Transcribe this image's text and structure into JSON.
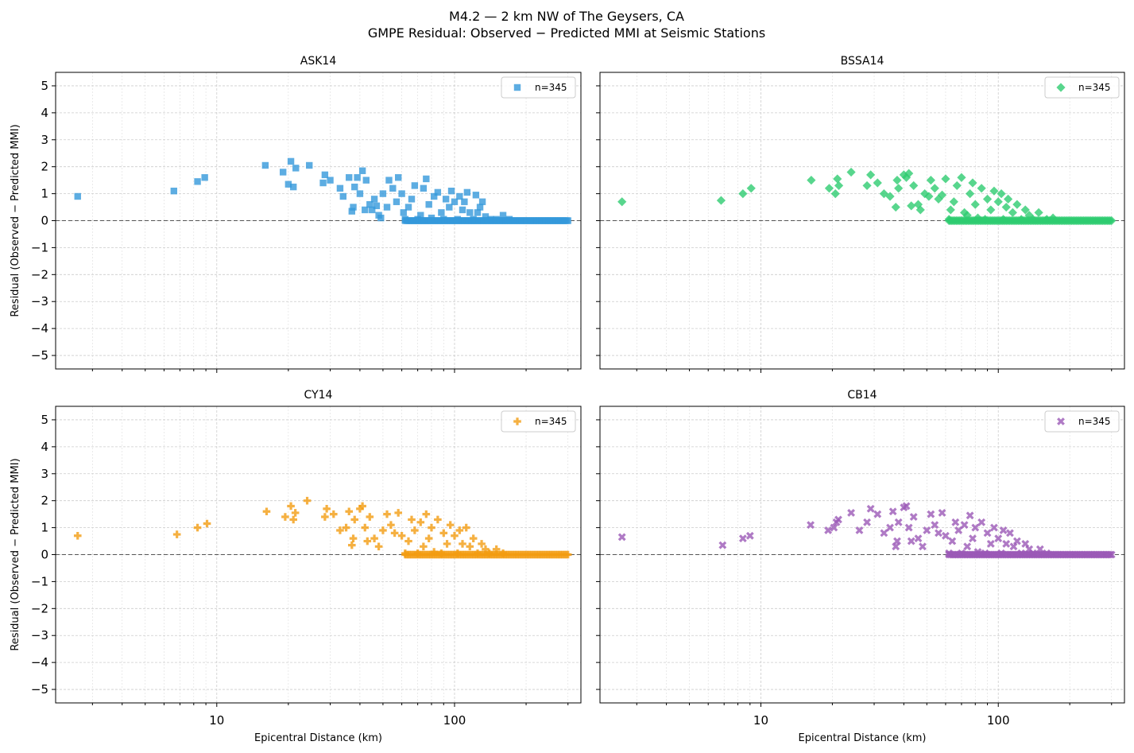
{
  "figure": {
    "title_line1": "M4.2 — 2 km NW of The Geysers, CA",
    "title_line2": "GMPE Residual: Observed − Predicted MMI at Seismic Stations"
  },
  "chart_data": [
    {
      "type": "scatter",
      "title": "ASK14",
      "xlabel": "",
      "ylabel": "Residual (Observed − Predicted MMI)",
      "xscale": "log",
      "xlim": [
        2.1,
        340
      ],
      "ylim": [
        -5.5,
        5.5
      ],
      "xticks": [
        "10",
        "100"
      ],
      "yticks": [
        "5",
        "4",
        "3",
        "2",
        "1",
        "0",
        "−1",
        "−2",
        "−3",
        "−4",
        "−5"
      ],
      "grid": true,
      "reference_line": 0,
      "legend": {
        "label": "n=345",
        "position": "upper right"
      },
      "marker": "square",
      "color": "#3498db",
      "n": 345,
      "points": [
        [
          2.6,
          0.9
        ],
        [
          6.6,
          1.1
        ],
        [
          8.3,
          1.45
        ],
        [
          8.9,
          1.6
        ],
        [
          16,
          2.05
        ],
        [
          19,
          1.8
        ],
        [
          20,
          1.35
        ],
        [
          20.5,
          2.2
        ],
        [
          21,
          1.25
        ],
        [
          21.5,
          1.95
        ],
        [
          24.5,
          2.05
        ],
        [
          28,
          1.4
        ],
        [
          28.5,
          1.7
        ],
        [
          30,
          1.5
        ],
        [
          33,
          1.2
        ],
        [
          34,
          0.9
        ],
        [
          36,
          1.6
        ],
        [
          37,
          0.35
        ],
        [
          37.5,
          0.5
        ],
        [
          38,
          1.25
        ],
        [
          39,
          1.6
        ],
        [
          40,
          1.0
        ],
        [
          41,
          1.85
        ],
        [
          42,
          0.4
        ],
        [
          42.5,
          1.5
        ],
        [
          44,
          0.6
        ],
        [
          45,
          0.4
        ],
        [
          46,
          0.8
        ],
        [
          47,
          0.55
        ],
        [
          48,
          0.2
        ],
        [
          49,
          0.1
        ],
        [
          50,
          1.0
        ],
        [
          52,
          0.5
        ],
        [
          53,
          1.5
        ],
        [
          55,
          1.2
        ],
        [
          57,
          0.7
        ],
        [
          58,
          1.6
        ],
        [
          60,
          1.0
        ],
        [
          61,
          0.3
        ],
        [
          62,
          0.05
        ],
        [
          64,
          0.5
        ],
        [
          66,
          0.8
        ],
        [
          68,
          1.3
        ],
        [
          70,
          0.05
        ],
        [
          72,
          0.2
        ],
        [
          74,
          1.2
        ],
        [
          76,
          1.55
        ],
        [
          78,
          0.6
        ],
        [
          80,
          0.1
        ],
        [
          82,
          0.9
        ],
        [
          85,
          1.05
        ],
        [
          88,
          0.3
        ],
        [
          90,
          0.05
        ],
        [
          92,
          0.8
        ],
        [
          95,
          0.5
        ],
        [
          97,
          1.1
        ],
        [
          100,
          0.7
        ],
        [
          103,
          0.05
        ],
        [
          105,
          0.9
        ],
        [
          108,
          0.4
        ],
        [
          110,
          0.7
        ],
        [
          113,
          1.05
        ],
        [
          116,
          0.3
        ],
        [
          120,
          0.05
        ],
        [
          123,
          0.95
        ],
        [
          125,
          0.3
        ],
        [
          128,
          0.5
        ],
        [
          131,
          0.7
        ],
        [
          135,
          0.15
        ],
        [
          142,
          0.05
        ],
        [
          150,
          0.05
        ],
        [
          160,
          0.2
        ],
        [
          170,
          0.05
        ]
      ],
      "zero_series": {
        "x_range": [
          62,
          300
        ],
        "value": 0
      }
    },
    {
      "type": "scatter",
      "title": "BSSA14",
      "xlabel": "",
      "ylabel": "",
      "xscale": "log",
      "xlim": [
        2.1,
        340
      ],
      "ylim": [
        -5.5,
        5.5
      ],
      "grid": true,
      "reference_line": 0,
      "legend": {
        "label": "n=345",
        "position": "upper right"
      },
      "marker": "diamond",
      "color": "#2ecc71",
      "n": 345,
      "points": [
        [
          2.6,
          0.7
        ],
        [
          6.8,
          0.75
        ],
        [
          8.4,
          1.0
        ],
        [
          9.1,
          1.2
        ],
        [
          16.3,
          1.5
        ],
        [
          19.4,
          1.2
        ],
        [
          20.6,
          1.0
        ],
        [
          21,
          1.55
        ],
        [
          21.3,
          1.3
        ],
        [
          24,
          1.8
        ],
        [
          28,
          1.3
        ],
        [
          29,
          1.7
        ],
        [
          31,
          1.4
        ],
        [
          33,
          1.0
        ],
        [
          35,
          0.9
        ],
        [
          37,
          0.5
        ],
        [
          37.5,
          1.5
        ],
        [
          38,
          1.2
        ],
        [
          40,
          1.7
        ],
        [
          41,
          1.6
        ],
        [
          42,
          1.75
        ],
        [
          43,
          0.55
        ],
        [
          44,
          1.3
        ],
        [
          46,
          0.6
        ],
        [
          47,
          0.4
        ],
        [
          49,
          1.0
        ],
        [
          51,
          0.9
        ],
        [
          52,
          1.5
        ],
        [
          54,
          1.2
        ],
        [
          56,
          0.8
        ],
        [
          58,
          0.95
        ],
        [
          60,
          1.55
        ],
        [
          62,
          0.05
        ],
        [
          63,
          0.4
        ],
        [
          65,
          0.7
        ],
        [
          67,
          1.3
        ],
        [
          70,
          1.6
        ],
        [
          72,
          0.3
        ],
        [
          74,
          0.2
        ],
        [
          76,
          1.0
        ],
        [
          78,
          1.4
        ],
        [
          80,
          0.6
        ],
        [
          82,
          0.1
        ],
        [
          85,
          1.2
        ],
        [
          88,
          0.05
        ],
        [
          90,
          0.8
        ],
        [
          93,
          0.4
        ],
        [
          96,
          1.1
        ],
        [
          100,
          0.7
        ],
        [
          103,
          1.0
        ],
        [
          105,
          0.05
        ],
        [
          108,
          0.5
        ],
        [
          110,
          0.8
        ],
        [
          115,
          0.3
        ],
        [
          120,
          0.6
        ],
        [
          125,
          0.05
        ],
        [
          130,
          0.4
        ],
        [
          135,
          0.2
        ],
        [
          140,
          0.05
        ],
        [
          148,
          0.3
        ],
        [
          160,
          0.05
        ],
        [
          170,
          0.1
        ]
      ],
      "zero_series": {
        "x_range": [
          62,
          300
        ],
        "value": 0
      }
    },
    {
      "type": "scatter",
      "title": "CY14",
      "xlabel": "Epicentral Distance (km)",
      "ylabel": "Residual (Observed − Predicted MMI)",
      "xscale": "log",
      "xlim": [
        2.1,
        340
      ],
      "ylim": [
        -5.5,
        5.5
      ],
      "xticks": [
        "10",
        "100"
      ],
      "yticks": [
        "5",
        "4",
        "3",
        "2",
        "1",
        "0",
        "−1",
        "−2",
        "−3",
        "−4",
        "−5"
      ],
      "grid": true,
      "reference_line": 0,
      "legend": {
        "label": "n=345",
        "position": "upper right"
      },
      "marker": "plus",
      "color": "#f39c12",
      "n": 345,
      "points": [
        [
          2.6,
          0.7
        ],
        [
          6.8,
          0.75
        ],
        [
          8.3,
          1.0
        ],
        [
          9.1,
          1.15
        ],
        [
          16.2,
          1.6
        ],
        [
          19.4,
          1.4
        ],
        [
          20.5,
          1.8
        ],
        [
          21,
          1.3
        ],
        [
          21.4,
          1.55
        ],
        [
          24,
          2.0
        ],
        [
          28.5,
          1.4
        ],
        [
          29,
          1.7
        ],
        [
          31,
          1.5
        ],
        [
          33,
          0.9
        ],
        [
          35,
          1.0
        ],
        [
          36,
          1.6
        ],
        [
          37,
          0.35
        ],
        [
          37.5,
          0.6
        ],
        [
          38,
          1.3
        ],
        [
          40,
          1.7
        ],
        [
          41,
          1.8
        ],
        [
          42,
          1.0
        ],
        [
          43,
          0.5
        ],
        [
          44,
          1.4
        ],
        [
          46,
          0.6
        ],
        [
          48,
          0.3
        ],
        [
          50,
          0.9
        ],
        [
          52,
          1.5
        ],
        [
          54,
          1.1
        ],
        [
          56,
          0.8
        ],
        [
          58,
          1.55
        ],
        [
          60,
          0.7
        ],
        [
          62,
          0.05
        ],
        [
          64,
          0.5
        ],
        [
          66,
          1.3
        ],
        [
          68,
          0.9
        ],
        [
          70,
          0.05
        ],
        [
          72,
          1.2
        ],
        [
          74,
          0.3
        ],
        [
          76,
          1.5
        ],
        [
          78,
          0.6
        ],
        [
          80,
          1.0
        ],
        [
          82,
          0.1
        ],
        [
          85,
          1.3
        ],
        [
          88,
          0.05
        ],
        [
          90,
          0.8
        ],
        [
          93,
          0.4
        ],
        [
          96,
          1.1
        ],
        [
          100,
          0.7
        ],
        [
          103,
          0.05
        ],
        [
          105,
          0.9
        ],
        [
          108,
          0.4
        ],
        [
          112,
          1.0
        ],
        [
          116,
          0.3
        ],
        [
          120,
          0.6
        ],
        [
          125,
          0.05
        ],
        [
          130,
          0.4
        ],
        [
          135,
          0.2
        ],
        [
          140,
          0.05
        ],
        [
          150,
          0.2
        ],
        [
          160,
          0.05
        ]
      ],
      "zero_series": {
        "x_range": [
          62,
          300
        ],
        "value": 0
      }
    },
    {
      "type": "scatter",
      "title": "CB14",
      "xlabel": "Epicentral Distance (km)",
      "ylabel": "",
      "xscale": "log",
      "xlim": [
        2.1,
        340
      ],
      "ylim": [
        -5.5,
        5.5
      ],
      "grid": true,
      "reference_line": 0,
      "legend": {
        "label": "n=345",
        "position": "upper right"
      },
      "marker": "x",
      "color": "#9b59b6",
      "n": 345,
      "points": [
        [
          2.6,
          0.65
        ],
        [
          6.9,
          0.35
        ],
        [
          8.4,
          0.6
        ],
        [
          9.0,
          0.7
        ],
        [
          16.2,
          1.1
        ],
        [
          19.2,
          0.9
        ],
        [
          20.3,
          1.0
        ],
        [
          20.8,
          1.2
        ],
        [
          21.2,
          1.3
        ],
        [
          24,
          1.55
        ],
        [
          26,
          0.9
        ],
        [
          28,
          1.2
        ],
        [
          29,
          1.7
        ],
        [
          31,
          1.5
        ],
        [
          33,
          0.8
        ],
        [
          35,
          1.0
        ],
        [
          36,
          1.6
        ],
        [
          37,
          0.3
        ],
        [
          37.5,
          0.5
        ],
        [
          38,
          1.2
        ],
        [
          40,
          1.75
        ],
        [
          41,
          1.8
        ],
        [
          42,
          1.0
        ],
        [
          43,
          0.5
        ],
        [
          44,
          1.4
        ],
        [
          46,
          0.6
        ],
        [
          48,
          0.3
        ],
        [
          50,
          0.9
        ],
        [
          52,
          1.5
        ],
        [
          54,
          1.1
        ],
        [
          56,
          0.8
        ],
        [
          58,
          1.55
        ],
        [
          60,
          0.7
        ],
        [
          62,
          0.05
        ],
        [
          64,
          0.5
        ],
        [
          66,
          1.2
        ],
        [
          68,
          0.9
        ],
        [
          70,
          0.05
        ],
        [
          72,
          1.1
        ],
        [
          74,
          0.3
        ],
        [
          76,
          1.45
        ],
        [
          78,
          0.6
        ],
        [
          80,
          1.0
        ],
        [
          82,
          0.1
        ],
        [
          85,
          1.2
        ],
        [
          88,
          0.05
        ],
        [
          90,
          0.8
        ],
        [
          93,
          0.4
        ],
        [
          96,
          1.0
        ],
        [
          100,
          0.6
        ],
        [
          103,
          0.05
        ],
        [
          105,
          0.9
        ],
        [
          108,
          0.4
        ],
        [
          112,
          0.8
        ],
        [
          116,
          0.3
        ],
        [
          120,
          0.5
        ],
        [
          125,
          0.05
        ],
        [
          130,
          0.4
        ],
        [
          135,
          0.2
        ],
        [
          140,
          0.05
        ],
        [
          150,
          0.2
        ],
        [
          160,
          0.05
        ]
      ],
      "zero_series": {
        "x_range": [
          62,
          300
        ],
        "value": 0
      }
    }
  ]
}
